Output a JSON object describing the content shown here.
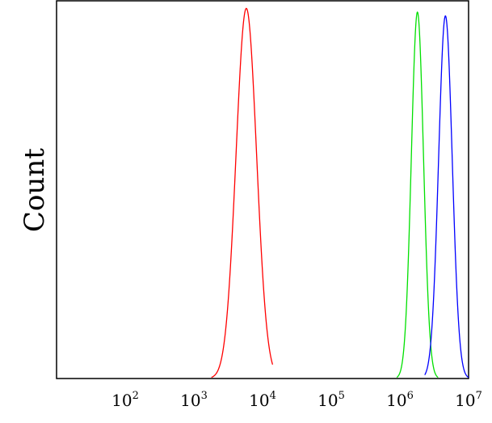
{
  "chart_data": {
    "type": "line",
    "title": "",
    "xlabel": "",
    "ylabel": "Count",
    "x_scale": "log",
    "xlim": [
      10,
      10000000
    ],
    "ylim": [
      0,
      1
    ],
    "grid": false,
    "legend": "none",
    "x_ticks": [
      {
        "value": 100,
        "base": "10",
        "exp": "2"
      },
      {
        "value": 1000,
        "base": "10",
        "exp": "3"
      },
      {
        "value": 10000,
        "base": "10",
        "exp": "4"
      },
      {
        "value": 100000,
        "base": "10",
        "exp": "5"
      },
      {
        "value": 1000000,
        "base": "10",
        "exp": "6"
      },
      {
        "value": 10000000,
        "base": "10",
        "exp": "7"
      }
    ],
    "series": [
      {
        "color": "#ff0000",
        "peak_x": 5800,
        "peak_y": 0.98,
        "x_start": 1800,
        "x_end": 14000
      },
      {
        "color": "#00e000",
        "peak_x": 1800000,
        "peak_y": 0.97,
        "x_start": 900000,
        "x_end": 3600000
      },
      {
        "color": "#0000ff",
        "peak_x": 4600000,
        "peak_y": 0.96,
        "x_start": 2300000,
        "x_end": 10000000
      }
    ]
  }
}
